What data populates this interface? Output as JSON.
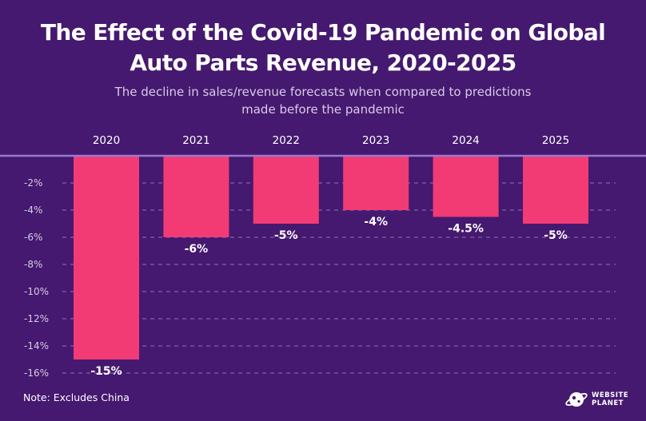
{
  "header": {
    "title_line1": "The Effect of the Covid-19 Pandemic on Global",
    "title_line2": "Auto Parts Revenue, 2020-2025",
    "subtitle_line1": "The decline in sales/revenue forecasts when compared to predictions",
    "subtitle_line2": "made before the pandemic"
  },
  "footer": {
    "note": "Note: Excludes China",
    "logo_line1": "WEBSITE",
    "logo_line2": "PLANET"
  },
  "colors": {
    "background": "#45196f",
    "bar": "#f23b74",
    "axis_line": "#9a78d0",
    "grid": "#8f74b8",
    "tick_text": "#d8cce6"
  },
  "chart_data": {
    "type": "bar",
    "categories": [
      "2020",
      "2021",
      "2022",
      "2023",
      "2024",
      "2025"
    ],
    "values": [
      -15,
      -6,
      -5,
      -4,
      -4.5,
      -5
    ],
    "data_labels": [
      "-15%",
      "-6%",
      "-5%",
      "-4%",
      "-4.5%",
      "-5%"
    ],
    "title": "The Effect of the Covid-19 Pandemic on Global Auto Parts Revenue, 2020-2025",
    "subtitle": "The decline in sales/revenue forecasts when compared to predictions made before the pandemic",
    "xlabel": "",
    "ylabel": "",
    "ylim": [
      -16,
      0
    ],
    "y_ticks": [
      -2,
      -4,
      -6,
      -8,
      -10,
      -12,
      -14,
      -16
    ],
    "y_tick_labels": [
      "-2%",
      "-4%",
      "-6%",
      "-8%",
      "-10%",
      "-12%",
      "-14%",
      "-16%"
    ],
    "x_axis_position": "top",
    "grid": true
  }
}
